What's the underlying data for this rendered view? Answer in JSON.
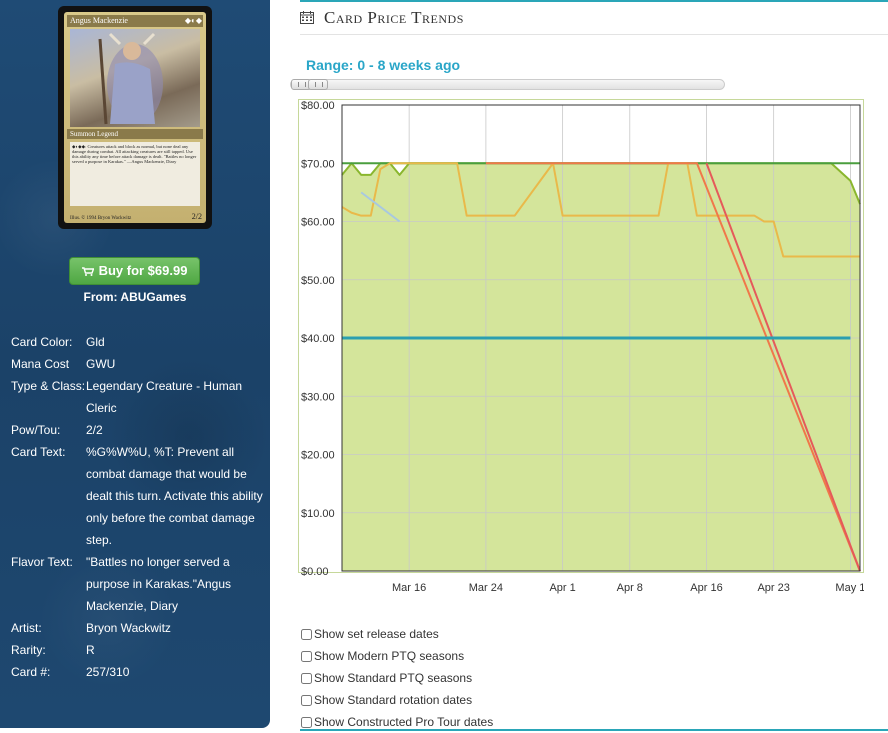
{
  "card": {
    "name": "Angus Mackenzie",
    "mana_symbols": "◆◐◆",
    "type_line": "Summon Legend",
    "text": "◆◐◆◆: Creatures attack and block as normal, but none deal any damage during combat. All attacking creatures are still tapped. Use this ability any time before attack damage is dealt. \"Battles no longer served a purpose in Karakas.\" —Angus Mackenzie, Diary",
    "footer": "Illus. © 1994 Bryon Wackwitz",
    "pt": "2/2"
  },
  "buy": {
    "label": "Buy for $69.99",
    "from": "From: ABUGames"
  },
  "info": [
    {
      "label": "Card Color:",
      "value": "Gld"
    },
    {
      "label": "Mana Cost",
      "value": "GWU"
    },
    {
      "label": "Type & Class:",
      "value": "Legendary Creature - Human Cleric"
    },
    {
      "label": "Pow/Tou:",
      "value": "2/2"
    },
    {
      "label": "Card Text:",
      "value": "%G%W%U, %T: Prevent all combat damage that would be dealt this turn. Activate this ability only before the combat damage step."
    },
    {
      "label": "Flavor Text:",
      "value": "\"Battles no longer served a purpose in Karakas.\"Angus Mackenzie, Diary"
    },
    {
      "label": "Artist:",
      "value": "Bryon Wackwitz"
    },
    {
      "label": "Rarity:",
      "value": "R"
    },
    {
      "label": "Card #:",
      "value": "257/310"
    }
  ],
  "page": {
    "heading": "Card Price Trends",
    "range": "Range: 0 - 8 weeks ago"
  },
  "options": [
    "Show set release dates",
    "Show Modern PTQ seasons",
    "Show Standard PTQ seasons",
    "Show Standard rotation dates",
    "Show Constructed Pro Tour dates"
  ],
  "colors": {
    "accent": "#2aa6c8",
    "buy": "#5cb85c",
    "sidebar": "#1e4a72"
  },
  "chart_data": {
    "type": "line",
    "ylim": [
      0,
      80
    ],
    "y_ticks": [
      "$0.00",
      "$10.00",
      "$20.00",
      "$30.00",
      "$40.00",
      "$50.00",
      "$60.00",
      "$70.00",
      "$80.00"
    ],
    "x_range": [
      "Mar 9",
      "May 2"
    ],
    "x_ticks": [
      {
        "label": "Mar 16",
        "date": "Mar 16"
      },
      {
        "label": "Mar 24",
        "date": "Mar 24"
      },
      {
        "label": "Apr 1",
        "date": "Apr 1"
      },
      {
        "label": "Apr 8",
        "date": "Apr 8"
      },
      {
        "label": "Apr 16",
        "date": "Apr 16"
      },
      {
        "label": "Apr 23",
        "date": "Apr 23"
      },
      {
        "label": "May 1",
        "date": "May 1"
      }
    ],
    "grid": true,
    "series": [
      {
        "color": "#8ab62e",
        "fill": "#d4e59b",
        "points": [
          [
            "Mar 9",
            68
          ],
          [
            "Mar 10",
            70
          ],
          [
            "Mar 11",
            68
          ],
          [
            "Mar 12",
            68
          ],
          [
            "Mar 13",
            70
          ],
          [
            "Mar 14",
            70
          ],
          [
            "Mar 15",
            68
          ],
          [
            "Mar 16",
            70
          ],
          [
            "Apr 29",
            70
          ],
          [
            "May 1",
            67
          ],
          [
            "May 2",
            63
          ]
        ]
      },
      {
        "color": "#4a9e3e",
        "points": [
          [
            "Mar 9",
            70
          ],
          [
            "May 2",
            70
          ]
        ]
      },
      {
        "color": "#e9b94a",
        "points": [
          [
            "Mar 9",
            62.5
          ],
          [
            "Mar 10",
            61.5
          ],
          [
            "Mar 11",
            61
          ],
          [
            "Mar 12",
            61
          ],
          [
            "Mar 13",
            69
          ],
          [
            "Mar 14",
            70
          ],
          [
            "Mar 21",
            70
          ],
          [
            "Mar 22",
            61
          ],
          [
            "Mar 27",
            61
          ],
          [
            "Mar 31",
            70
          ],
          [
            "Apr 1",
            61
          ],
          [
            "Apr 11",
            61
          ],
          [
            "Apr 12",
            70
          ],
          [
            "Apr 14",
            70
          ],
          [
            "Apr 15",
            61
          ],
          [
            "Apr 21",
            61
          ],
          [
            "Apr 22",
            60
          ],
          [
            "Apr 23",
            60
          ],
          [
            "Apr 24",
            54
          ],
          [
            "May 2",
            54
          ]
        ]
      },
      {
        "color": "#f0784a",
        "points": [
          [
            "Mar 24",
            70
          ],
          [
            "Apr 15",
            70
          ],
          [
            "May 2",
            0
          ]
        ]
      },
      {
        "color": "#e55a5a",
        "points": [
          [
            "Apr 16",
            70
          ],
          [
            "May 2",
            0
          ]
        ]
      },
      {
        "color": "#a8c8e0",
        "points": [
          [
            "Mar 11",
            65
          ],
          [
            "Mar 15",
            60
          ]
        ]
      },
      {
        "color": "#2a9fb0",
        "points": [
          [
            "Mar 9",
            40
          ],
          [
            "May 1",
            40
          ]
        ]
      }
    ]
  }
}
